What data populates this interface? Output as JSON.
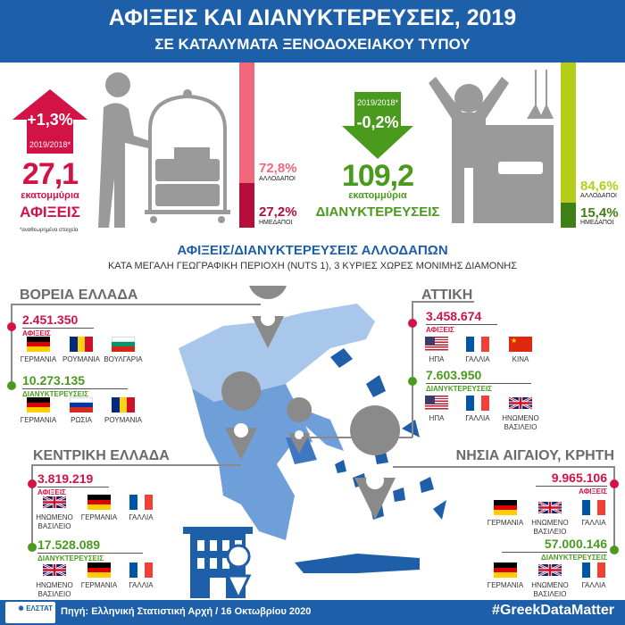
{
  "header": {
    "title": "ΑΦΙΞΕΙΣ ΚΑΙ ΔΙΑΝΥΚΤΕΡΕΥΣΕΙΣ, 2019",
    "subtitle": "ΣΕ ΚΑΤΑΛΥΜΑΤΑ ΞΕΝΟΔΟΧΕΙΑΚΟΥ ΤΥΠΟΥ"
  },
  "arrivals": {
    "change": "+1,3%",
    "period": "2019/2018*",
    "value": "27,1",
    "unit": "εκατομμύρια",
    "label": "ΑΦΙΞΕΙΣ",
    "footnote": "*αναθεωρημένα στοιχεία",
    "foreign_pct": "72,8%",
    "foreign_label": "ΑΛΛΟΔΑΠΟΙ",
    "domestic_pct": "27,2%",
    "domestic_label": "ΗΜΕΔΑΠΟΙ",
    "foreign_share": 72.8,
    "color": "#d31245"
  },
  "nights": {
    "change": "-0,2%",
    "period": "2019/2018*",
    "value": "109,2",
    "unit": "εκατομμύρια",
    "label": "ΔΙΑΝΥΚΤΕΡΕΥΣΕΙΣ",
    "foreign_pct": "84,6%",
    "foreign_label": "ΑΛΛΟΔΑΠΟΙ",
    "domestic_pct": "15,4%",
    "domestic_label": "ΗΜΕΔΑΠΟΙ",
    "foreign_share": 84.6,
    "color": "#4a9a1e"
  },
  "section": {
    "title": "ΑΦΙΞΕΙΣ/ΔΙΑΝΥΚΤΕΡΕΥΣΕΙΣ ΑΛΛΟΔΑΠΩΝ",
    "subtitle": "ΚΑΤΑ ΜΕΓΑΛΗ ΓΕΩΓΡΑΦΙΚΗ ΠΕΡΙΟΧΗ (NUTS 1), 3 ΚΥΡΙΕΣ ΧΩΡΕΣ ΜΟΝΙΜΗΣ ΔΙΑΜΟΝΗΣ"
  },
  "regions": [
    {
      "name": "ΒΟΡΕΙΑ ΕΛΛΑΔΑ",
      "arrivals": "2.451.350",
      "arrivals_label": "ΑΦΙΞΕΙΣ",
      "arrivals_countries": [
        {
          "code": "de",
          "name": "ΓΕΡΜΑΝΙΑ"
        },
        {
          "code": "ro",
          "name": "ΡΟΥΜΑΝΙΑ"
        },
        {
          "code": "bg",
          "name": "ΒΟΥΛΓΑΡΙΑ"
        }
      ],
      "nights": "10.273.135",
      "nights_label": "ΔΙΑΝΥΚΤΕΡΕΥΣΕΙΣ",
      "nights_countries": [
        {
          "code": "de",
          "name": "ΓΕΡΜΑΝΙΑ"
        },
        {
          "code": "ru",
          "name": "ΡΩΣΙΑ"
        },
        {
          "code": "ro",
          "name": "ΡΟΥΜΑΝΙΑ"
        }
      ]
    },
    {
      "name": "ΑΤΤΙΚΗ",
      "arrivals": "3.458.674",
      "arrivals_label": "ΑΦΙΞΕΙΣ",
      "arrivals_countries": [
        {
          "code": "us",
          "name": "ΗΠΑ"
        },
        {
          "code": "fr",
          "name": "ΓΑΛΛΙΑ"
        },
        {
          "code": "cn",
          "name": "ΚΙΝΑ"
        }
      ],
      "nights": "7.603.950",
      "nights_label": "ΔΙΑΝΥΚΤΕΡΕΥΣΕΙΣ",
      "nights_countries": [
        {
          "code": "us",
          "name": "ΗΠΑ"
        },
        {
          "code": "fr",
          "name": "ΓΑΛΛΙΑ"
        },
        {
          "code": "uk",
          "name": "ΗΝΩΜΕΝΟ ΒΑΣΙΛΕΙΟ"
        }
      ]
    },
    {
      "name": "ΚΕΝΤΡΙΚΗ ΕΛΛΑΔΑ",
      "arrivals": "3.819.219",
      "arrivals_label": "ΑΦΙΞΕΙΣ",
      "arrivals_countries": [
        {
          "code": "uk",
          "name": "ΗΝΩΜΕΝΟ ΒΑΣΙΛΕΙΟ"
        },
        {
          "code": "de",
          "name": "ΓΕΡΜΑΝΙΑ"
        },
        {
          "code": "fr",
          "name": "ΓΑΛΛΙΑ"
        }
      ],
      "nights": "17.528.089",
      "nights_label": "ΔΙΑΝΥΚΤΕΡΕΥΣΕΙΣ",
      "nights_countries": [
        {
          "code": "uk",
          "name": "ΗΝΩΜΕΝΟ ΒΑΣΙΛΕΙΟ"
        },
        {
          "code": "de",
          "name": "ΓΕΡΜΑΝΙΑ"
        },
        {
          "code": "fr",
          "name": "ΓΑΛΛΙΑ"
        }
      ]
    },
    {
      "name": "ΝΗΣΙΑ ΑΙΓΑΙΟΥ, ΚΡΗΤΗ",
      "arrivals": "9.965.106",
      "arrivals_label": "ΑΦΙΞΕΙΣ",
      "arrivals_countries": [
        {
          "code": "de",
          "name": "ΓΕΡΜΑΝΙΑ"
        },
        {
          "code": "uk",
          "name": "ΗΝΩΜΕΝΟ ΒΑΣΙΛΕΙΟ"
        },
        {
          "code": "fr",
          "name": "ΓΑΛΛΙΑ"
        }
      ],
      "nights": "57.000.146",
      "nights_label": "ΔΙΑΝΥΚΤΕΡΕΥΣΕΙΣ",
      "nights_countries": [
        {
          "code": "de",
          "name": "ΓΕΡΜΑΝΙΑ"
        },
        {
          "code": "uk",
          "name": "ΗΝΩΜΕΝΟ ΒΑΣΙΛΕΙΟ"
        },
        {
          "code": "fr",
          "name": "ΓΑΛΛΙΑ"
        }
      ]
    }
  ],
  "footer": {
    "logo": "ΕΛΛΗΝΙΚΗ ΕΛΣΤΑΤ",
    "source": "Πηγή: Ελληνική Στατιστική Αρχή  / 16 Οκτωβρίου 2020",
    "hashtag": "#GreekDataMatter"
  },
  "colors": {
    "blue": "#1d5fa8",
    "red": "#d31245",
    "green": "#4a9a1e",
    "gray": "#9a9a9a"
  }
}
